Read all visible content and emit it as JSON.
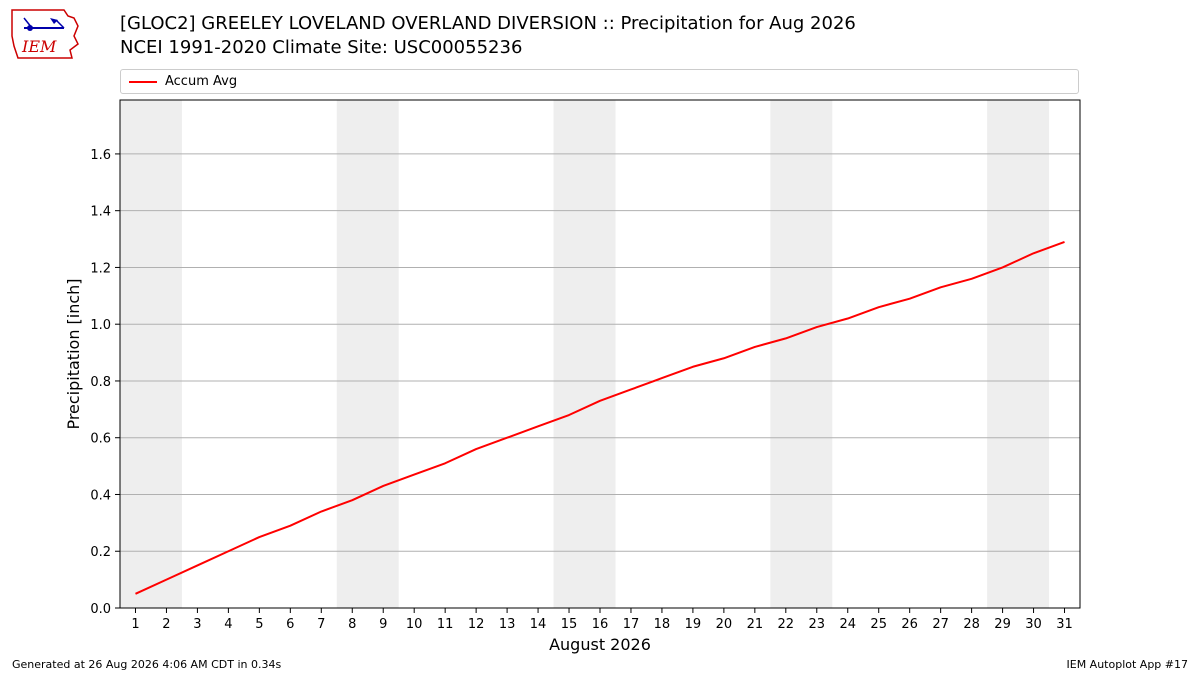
{
  "header": {
    "title_line1": "[GLOC2] GREELEY LOVELAND OVERLAND DIVERSION :: Precipitation for Aug 2026",
    "title_line2": "NCEI 1991-2020 Climate Site: USC00055236",
    "logo_text": "IEM"
  },
  "footer": {
    "generated": "Generated at 26 Aug 2026 4:06 AM CDT in 0.34s",
    "app": "IEM Autoplot App #17"
  },
  "colors": {
    "line": "#ff0000",
    "weekend_band": "#eeeeee",
    "grid": "#b0b0b0",
    "logo": "#cc0000"
  },
  "chart_data": {
    "type": "line",
    "xlabel": "August 2026",
    "ylabel": "Precipitation [inch]",
    "xlim": [
      0.5,
      31.5
    ],
    "ylim": [
      0,
      1.79
    ],
    "yticks": [
      "0.0",
      "0.2",
      "0.4",
      "0.6",
      "0.8",
      "1.0",
      "1.2",
      "1.4",
      "1.6"
    ],
    "x": [
      1,
      2,
      3,
      4,
      5,
      6,
      7,
      8,
      9,
      10,
      11,
      12,
      13,
      14,
      15,
      16,
      17,
      18,
      19,
      20,
      21,
      22,
      23,
      24,
      25,
      26,
      27,
      28,
      29,
      30,
      31
    ],
    "xticks": [
      "1",
      "2",
      "3",
      "4",
      "5",
      "6",
      "7",
      "8",
      "9",
      "10",
      "11",
      "12",
      "13",
      "14",
      "15",
      "16",
      "17",
      "18",
      "19",
      "20",
      "21",
      "22",
      "23",
      "24",
      "25",
      "26",
      "27",
      "28",
      "29",
      "30",
      "31"
    ],
    "weekend_days": [
      [
        1,
        2
      ],
      [
        8,
        9
      ],
      [
        15,
        16
      ],
      [
        22,
        23
      ],
      [
        29,
        30
      ]
    ],
    "grid": "y",
    "legend_position": "top",
    "series": [
      {
        "name": "Accum Avg",
        "color": "#ff0000",
        "values": [
          0.05,
          0.1,
          0.15,
          0.2,
          0.25,
          0.29,
          0.34,
          0.38,
          0.43,
          0.47,
          0.51,
          0.56,
          0.6,
          0.64,
          0.68,
          0.73,
          0.77,
          0.81,
          0.85,
          0.88,
          0.92,
          0.95,
          0.99,
          1.02,
          1.06,
          1.09,
          1.13,
          1.16,
          1.2,
          1.25,
          1.29
        ]
      }
    ]
  }
}
